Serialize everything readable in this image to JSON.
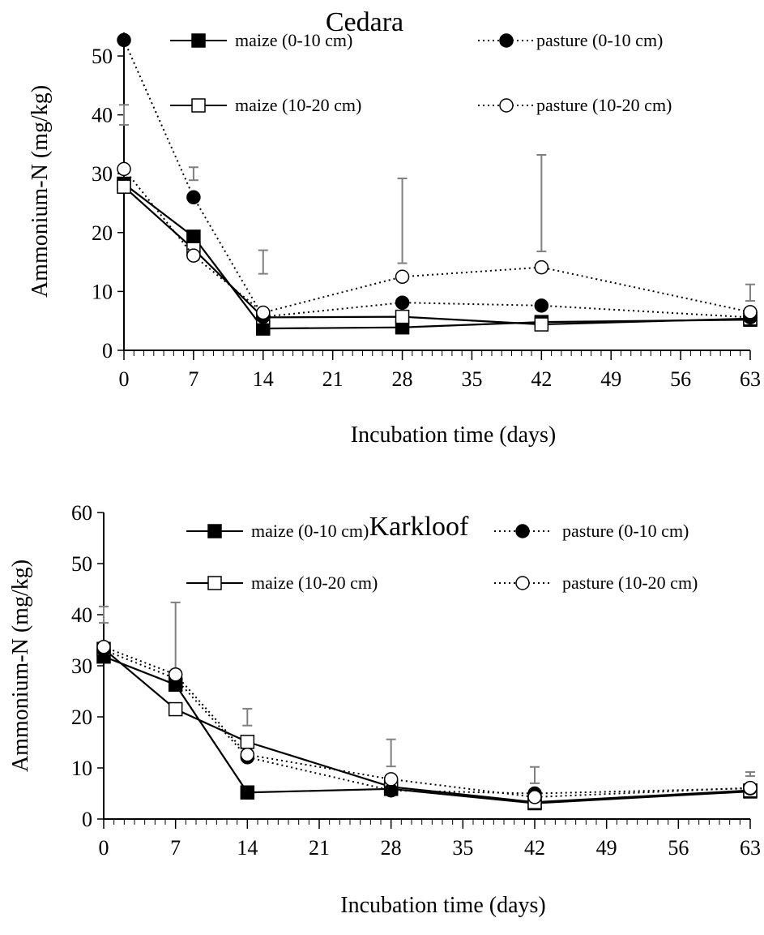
{
  "chart_data": [
    {
      "type": "line",
      "title": "Cedara",
      "xlabel": "Incubation time (days)",
      "ylabel": "Ammonium-N (mg/kg)",
      "xlim": [
        0,
        63
      ],
      "ylim": [
        0,
        54
      ],
      "xticks": [
        0,
        7,
        14,
        21,
        28,
        35,
        42,
        49,
        56,
        63
      ],
      "yticks": [
        0,
        10,
        20,
        30,
        40,
        50
      ],
      "legend": "top, two columns",
      "grid": false,
      "series": [
        {
          "name": "maize (0-10 cm)",
          "style": "solid",
          "marker": "filled-square",
          "x": [
            0,
            7,
            14,
            28,
            42,
            63
          ],
          "y": [
            28.3,
            19.3,
            3.7,
            3.9,
            4.8,
            5.2
          ]
        },
        {
          "name": "maize (10-20 cm)",
          "style": "solid",
          "marker": "open-square",
          "x": [
            0,
            7,
            14,
            28,
            42,
            63
          ],
          "y": [
            27.8,
            17.2,
            5.6,
            5.7,
            4.4,
            5.4
          ]
        },
        {
          "name": "pasture (0-10 cm)",
          "style": "dotted",
          "marker": "filled-circle",
          "x": [
            0,
            7,
            14,
            28,
            42,
            63
          ],
          "y": [
            52.7,
            26.0,
            5.7,
            8.1,
            7.6,
            5.6
          ]
        },
        {
          "name": "pasture (10-20 cm)",
          "style": "dotted",
          "marker": "open-circle",
          "x": [
            0,
            7,
            14,
            28,
            42,
            63
          ],
          "y": [
            30.8,
            16.1,
            6.4,
            12.5,
            14.1,
            6.5
          ]
        }
      ],
      "error_bars": [
        {
          "x": 0,
          "low": 38.3,
          "high": 41.7
        },
        {
          "x": 7,
          "low": 28.9,
          "high": 31.1
        },
        {
          "x": 14,
          "low": 13.0,
          "high": 17.0
        },
        {
          "x": 28,
          "low": 14.8,
          "high": 29.2
        },
        {
          "x": 42,
          "low": 16.8,
          "high": 33.2
        },
        {
          "x": 63,
          "low": 8.4,
          "high": 11.2
        }
      ]
    },
    {
      "type": "line",
      "title": "Karkloof",
      "xlabel": "Incubation time (days)",
      "ylabel": "Ammonium-N (mg/kg)",
      "xlim": [
        0,
        63
      ],
      "ylim": [
        0,
        60
      ],
      "xticks": [
        0,
        7,
        14,
        21,
        28,
        35,
        42,
        49,
        56,
        63
      ],
      "yticks": [
        0,
        10,
        20,
        30,
        40,
        50,
        60
      ],
      "legend": "top, two columns",
      "grid": false,
      "series": [
        {
          "name": "maize (0-10 cm)",
          "style": "solid",
          "marker": "filled-square",
          "x": [
            0,
            7,
            14,
            28,
            42,
            63
          ],
          "y": [
            31.8,
            26.3,
            5.2,
            5.9,
            3.1,
            5.4
          ]
        },
        {
          "name": "maize (10-20 cm)",
          "style": "solid",
          "marker": "open-square",
          "x": [
            0,
            7,
            14,
            28,
            42,
            63
          ],
          "y": [
            33.3,
            21.5,
            15.1,
            6.3,
            3.3,
            5.6
          ]
        },
        {
          "name": "pasture (0-10 cm)",
          "style": "dotted",
          "marker": "filled-circle",
          "x": [
            0,
            7,
            14,
            28,
            42,
            63
          ],
          "y": [
            33.1,
            27.5,
            12.1,
            5.6,
            5.0,
            6.0
          ]
        },
        {
          "name": "pasture (10-20 cm)",
          "style": "dotted",
          "marker": "open-circle",
          "x": [
            0,
            7,
            14,
            28,
            42,
            63
          ],
          "y": [
            33.7,
            28.3,
            12.6,
            7.8,
            4.3,
            6.1
          ]
        }
      ],
      "error_bars": [
        {
          "x": 0,
          "low": 38.4,
          "high": 41.6
        },
        {
          "x": 7,
          "low": 29.3,
          "high": 42.4
        },
        {
          "x": 14,
          "low": 18.3,
          "high": 21.6
        },
        {
          "x": 28,
          "low": 10.3,
          "high": 15.6
        },
        {
          "x": 42,
          "low": 7.0,
          "high": 10.2
        },
        {
          "x": 63,
          "low": 8.4,
          "high": 9.2
        }
      ]
    }
  ]
}
